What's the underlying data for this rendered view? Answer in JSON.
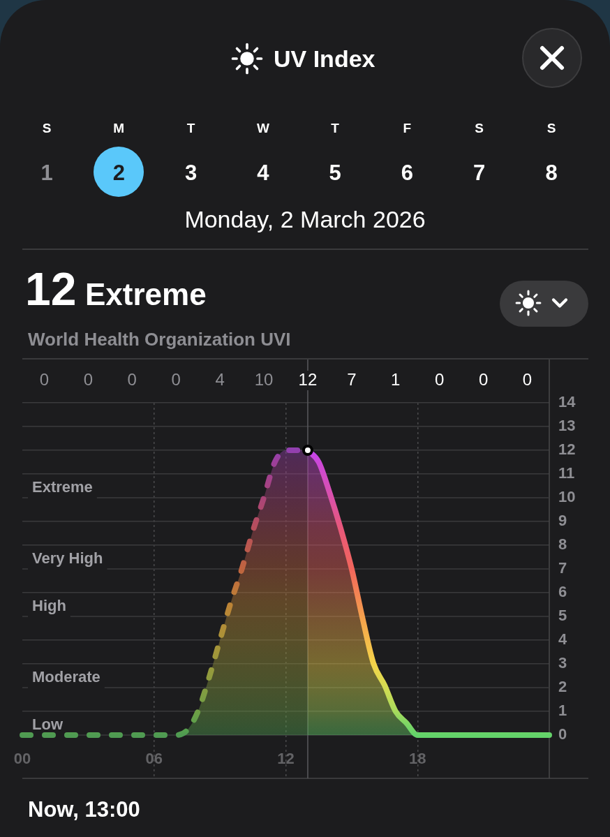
{
  "chart_data": {
    "type": "area",
    "title": "UV Index",
    "subtitle": "World Health Organization UVI",
    "annotations": [
      "S",
      "M",
      "T",
      "W",
      "T",
      "F",
      "S",
      "S",
      "1",
      "2",
      "3",
      "4",
      "5",
      "6",
      "7",
      "8",
      "Monday, 2 March 2026",
      "12 Extreme",
      "0",
      "0",
      "0",
      "0",
      "4",
      "10",
      "12",
      "7",
      "1",
      "0",
      "0",
      "0",
      "Now, 13:00"
    ],
    "xlim": [
      0,
      24
    ],
    "xticks": [
      {
        "value": 0,
        "label": "00"
      },
      {
        "value": 6,
        "label": "06"
      },
      12,
      18
    ],
    "ylim": [
      0,
      14
    ],
    "yticks": [
      0,
      1,
      2,
      3,
      4,
      5,
      6,
      7,
      8,
      9,
      10,
      11,
      12,
      13,
      14
    ],
    "grid": true,
    "legend": false,
    "series": [
      {
        "type": "area",
        "line_style": "dashed",
        "x": [
          0,
          1,
          2,
          3,
          4,
          5,
          6,
          7,
          7.5,
          8,
          8.5,
          9,
          9.5,
          10,
          10.5,
          11,
          11.5,
          12,
          12.5,
          13
        ],
        "values": [
          0,
          0,
          0,
          0,
          0,
          0,
          0,
          0,
          0.2,
          1,
          2.4,
          4,
          5.6,
          7,
          8.6,
          10,
          11.5,
          12,
          12,
          12
        ],
        "colors": [
          "#4f9a52",
          "#4f9a52",
          "#4f9a52",
          "#4f9a52",
          "#4f9a52",
          "#4f9a52",
          "#4f9a52",
          "#4f9a52",
          "#55a04e",
          "#6fa046",
          "#8f9c3e",
          "#ab9438",
          "#bd8236",
          "#c0643f",
          "#b8505a",
          "#aa4478",
          "#9c3f9a",
          "#9240b0",
          "#9240b0",
          "#9240b0"
        ]
      },
      {
        "type": "area",
        "line_style": "solid",
        "x": [
          13,
          13.5,
          14,
          14.5,
          15,
          15.5,
          16,
          16.5,
          17,
          17.5,
          18,
          19,
          20,
          21,
          22,
          23,
          24
        ],
        "values": [
          12,
          11.5,
          10.2,
          8.7,
          7,
          4.9,
          3,
          2.1,
          1,
          0.5,
          0,
          0,
          0,
          0,
          0,
          0,
          0
        ],
        "colors": [
          "#c544f0",
          "#cc48d8",
          "#d850b0",
          "#e8587a",
          "#f2665c",
          "#f4a24c",
          "#f5d44a",
          "#d8dc52",
          "#a8da5c",
          "#80d664",
          "#63d36a",
          "#63d36a",
          "#63d36a",
          "#63d36a",
          "#63d36a",
          "#63d36a",
          "#63d36a"
        ]
      },
      {
        "type": "scatter",
        "marker": "circle",
        "x": [
          13
        ],
        "values": [
          12
        ],
        "color": "#ffffff"
      }
    ],
    "ref_lines": [
      {
        "axis": "y",
        "value": 10,
        "label": "Extreme",
        "color": "#3a3a3c"
      },
      {
        "axis": "y",
        "value": 7,
        "label": "Very High",
        "color": "#3a3a3c"
      },
      {
        "axis": "y",
        "value": 5,
        "label": "High",
        "color": "#3a3a3c"
      },
      {
        "axis": "y",
        "value": 2,
        "label": "Moderate",
        "color": "#3a3a3c"
      },
      {
        "axis": "y",
        "value": 0,
        "label": "Low",
        "color": "#3a3a3c"
      },
      {
        "axis": "x",
        "value": 13,
        "color": "#5a5a5e"
      }
    ]
  }
}
